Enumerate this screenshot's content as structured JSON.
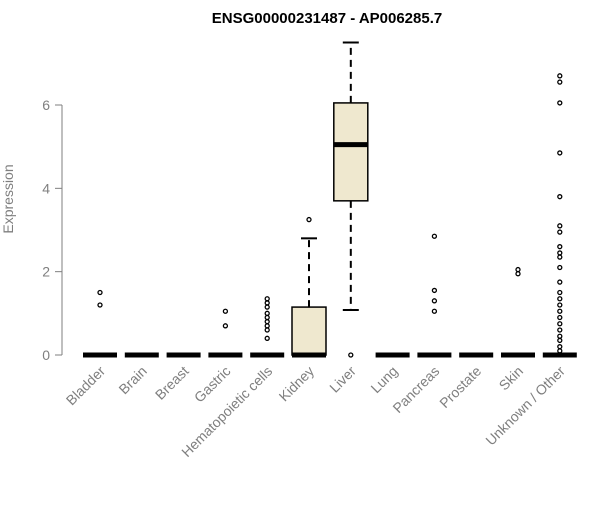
{
  "chart_data": {
    "type": "box",
    "title": "ENSG00000231487 - AP006285.7",
    "xlabel": "",
    "ylabel": "Expression",
    "ylim": [
      0,
      7.6
    ],
    "yticks": [
      "0",
      "2",
      "4",
      "6"
    ],
    "ytick_values": [
      0,
      2,
      4,
      6
    ],
    "grid": false,
    "colors": {
      "box_fill": "#efe8cf",
      "box_stroke": "#000000",
      "tick_text": "#7f7f7f",
      "title": "#000000"
    },
    "categories": [
      "Bladder",
      "Brain",
      "Breast",
      "Gastric",
      "Hematopoietic cells",
      "Kidney",
      "Liver",
      "Lung",
      "Pancreas",
      "Prostate",
      "Skin",
      "Unknown / Other"
    ],
    "boxes": [
      {
        "category": "Bladder",
        "min": 0,
        "q1": 0,
        "median": 0,
        "q3": 0,
        "max": 0,
        "outliers": [
          1.5,
          1.2
        ]
      },
      {
        "category": "Brain",
        "min": 0,
        "q1": 0,
        "median": 0,
        "q3": 0,
        "max": 0,
        "outliers": []
      },
      {
        "category": "Breast",
        "min": 0,
        "q1": 0,
        "median": 0,
        "q3": 0,
        "max": 0,
        "outliers": []
      },
      {
        "category": "Gastric",
        "min": 0,
        "q1": 0,
        "median": 0,
        "q3": 0,
        "max": 0,
        "outliers": [
          1.05,
          0.7
        ]
      },
      {
        "category": "Hematopoietic cells",
        "min": 0,
        "q1": 0,
        "median": 0,
        "q3": 0,
        "max": 0,
        "outliers": [
          1.35,
          1.25,
          1.15,
          1.0,
          0.9,
          0.8,
          0.7,
          0.6,
          0.4
        ]
      },
      {
        "category": "Kidney",
        "min": 0,
        "q1": 0,
        "median": 0,
        "q3": 1.15,
        "max": 2.8,
        "outliers": [
          3.25
        ]
      },
      {
        "category": "Liver",
        "min": 1.08,
        "q1": 3.7,
        "median": 5.05,
        "q3": 6.05,
        "max": 7.5,
        "outliers": [
          0
        ]
      },
      {
        "category": "Lung",
        "min": 0,
        "q1": 0,
        "median": 0,
        "q3": 0,
        "max": 0,
        "outliers": []
      },
      {
        "category": "Pancreas",
        "min": 0,
        "q1": 0,
        "median": 0,
        "q3": 0,
        "max": 0,
        "outliers": [
          2.85,
          1.55,
          1.3,
          1.05
        ]
      },
      {
        "category": "Prostate",
        "min": 0,
        "q1": 0,
        "median": 0,
        "q3": 0,
        "max": 0,
        "outliers": []
      },
      {
        "category": "Skin",
        "min": 0,
        "q1": 0,
        "median": 0,
        "q3": 0,
        "max": 0,
        "outliers": [
          2.05,
          1.95
        ]
      },
      {
        "category": "Unknown / Other",
        "min": 0,
        "q1": 0,
        "median": 0,
        "q3": 0,
        "max": 0,
        "outliers": [
          6.7,
          6.55,
          6.05,
          4.85,
          3.8,
          3.1,
          2.95,
          2.6,
          2.45,
          2.35,
          2.1,
          1.75,
          1.5,
          1.35,
          1.2,
          1.05,
          0.9,
          0.75,
          0.6,
          0.45,
          0.35,
          0.2,
          0.1
        ]
      }
    ]
  }
}
